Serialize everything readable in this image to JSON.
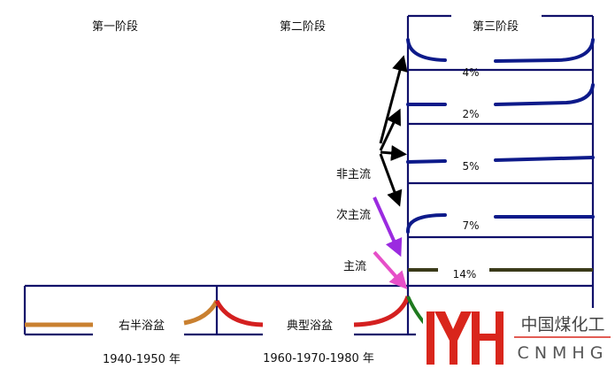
{
  "stages": {
    "stage1": "第一阶段",
    "stage2": "第二阶段",
    "stage3": "第三阶段"
  },
  "bottom": {
    "shape1": "右半浴盆",
    "shape2": "典型浴盆",
    "years1": "1940-1950 年",
    "years2": "1960-1970-1980 年"
  },
  "flows": {
    "non_main": "非主流",
    "secondary": "次主流",
    "main": "主流"
  },
  "percents": [
    "4%",
    "2%",
    "5%",
    "7%",
    "14%"
  ],
  "logo": {
    "cn": "中国煤化工",
    "en": "CNMHG"
  },
  "colors": {
    "frame": "#10106a",
    "curve_blue": "#0d1a8a",
    "orange": "#c98030",
    "red": "#d42020",
    "green": "#1f7a1f",
    "olive": "#3a3a1a",
    "purple": "#9b2be0",
    "pink": "#e64fc8",
    "logo_red": "#d9261c"
  }
}
